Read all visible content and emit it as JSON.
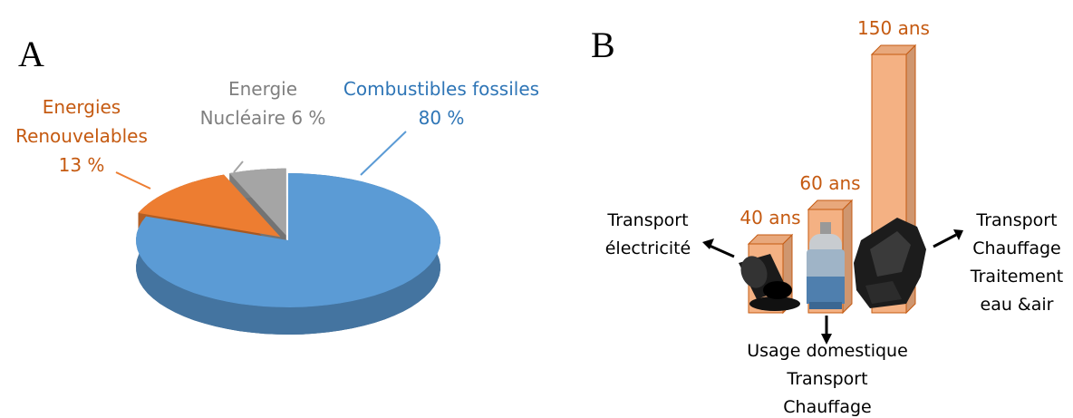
{
  "chart_data": [
    {
      "type": "pie",
      "title": "A",
      "categories": [
        "Combustibles fossiles",
        "Energies Renouvelables",
        "Energie Nucléaire"
      ],
      "values": [
        80,
        13,
        6
      ],
      "value_labels": [
        "80 %",
        "13 %",
        "6 %"
      ],
      "colors": [
        "#5b9bd5",
        "#ed7d31",
        "#a5a5a5"
      ],
      "label_colors": [
        "#2e75b6",
        "#c55a11",
        "#7f7f7f"
      ]
    },
    {
      "type": "bar",
      "title": "B",
      "categories": [
        null,
        null,
        null
      ],
      "values": [
        40,
        60,
        150
      ],
      "value_labels": [
        "40 ans",
        "60 ans",
        "150 ans"
      ],
      "color": "#f4b183",
      "label_color": "#c55a11",
      "annotations": [
        [
          "Transport",
          "électricité"
        ],
        [
          "Usage domestique",
          "Transport",
          "Chauffage"
        ],
        [
          "Transport",
          "Chauffage",
          "Traitement",
          "eau &air"
        ]
      ]
    }
  ]
}
